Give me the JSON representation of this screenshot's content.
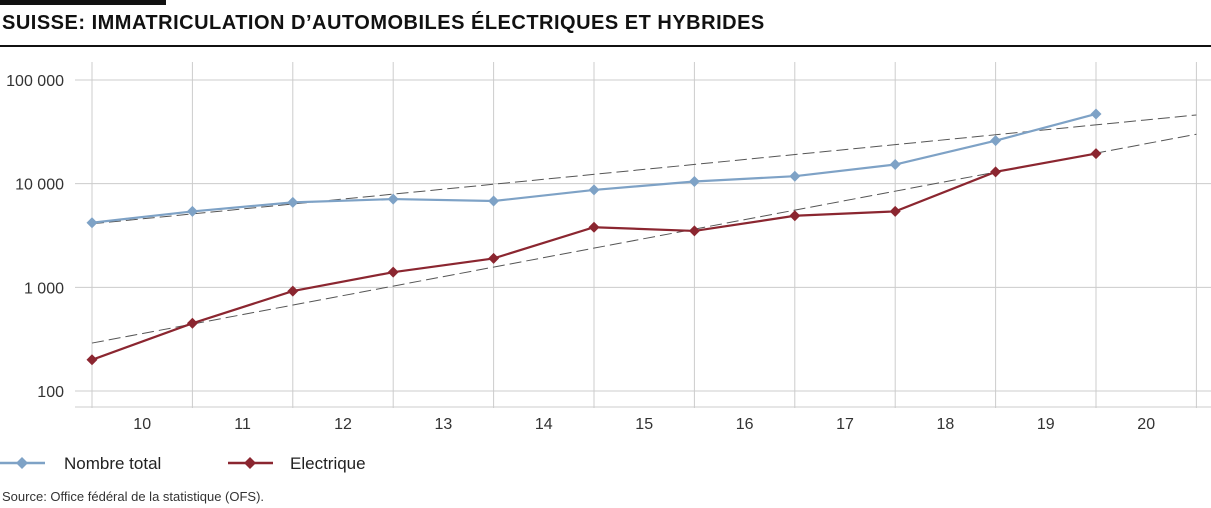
{
  "title": "SUISSE: IMMATRICULATION D’AUTOMOBILES ÉLECTRIQUES ET HYBRIDES",
  "source": "Source: Office fédéral de la statistique (OFS).",
  "legend": [
    {
      "label": "Nombre total",
      "color": "#7ea2c6",
      "marker": "diamond"
    },
    {
      "label": "Electrique",
      "color": "#8b2630",
      "marker": "diamond"
    }
  ],
  "chart_data": {
    "type": "line",
    "y_scale": "log",
    "ylim": [
      70,
      130000
    ],
    "y_ticks": [
      100,
      1000,
      10000,
      100000
    ],
    "y_tick_labels": [
      "100",
      "1 000",
      "10 000",
      "100 000"
    ],
    "x_tick_labels": [
      "10",
      "11",
      "12",
      "13",
      "14",
      "15",
      "16",
      "17",
      "18",
      "19",
      "20"
    ],
    "grid": true,
    "legend_position": "bottom-left",
    "series": [
      {
        "name": "Nombre total",
        "color": "#7ea2c6",
        "x": [
          "2010",
          "2011",
          "2012",
          "2013",
          "2014",
          "2015",
          "2016",
          "2017",
          "2018",
          "2019",
          "2020"
        ],
        "values": [
          4200,
          5400,
          6600,
          7100,
          6800,
          8700,
          10500,
          11800,
          15300,
          26000,
          47000
        ]
      },
      {
        "name": "Electrique",
        "color": "#8b2630",
        "x": [
          "2010",
          "2011",
          "2012",
          "2013",
          "2014",
          "2015",
          "2016",
          "2017",
          "2018",
          "2019",
          "2020"
        ],
        "values": [
          200,
          450,
          920,
          1400,
          1900,
          3800,
          3500,
          4900,
          5400,
          13000,
          19500
        ]
      }
    ],
    "trendlines": [
      {
        "style": "dashed",
        "color": "#555555",
        "from": [
          "2010",
          4100
        ],
        "to": [
          "2021",
          46000
        ]
      },
      {
        "style": "dashed",
        "color": "#555555",
        "from": [
          "2010",
          290
        ],
        "to": [
          "2021",
          30000
        ]
      }
    ]
  }
}
